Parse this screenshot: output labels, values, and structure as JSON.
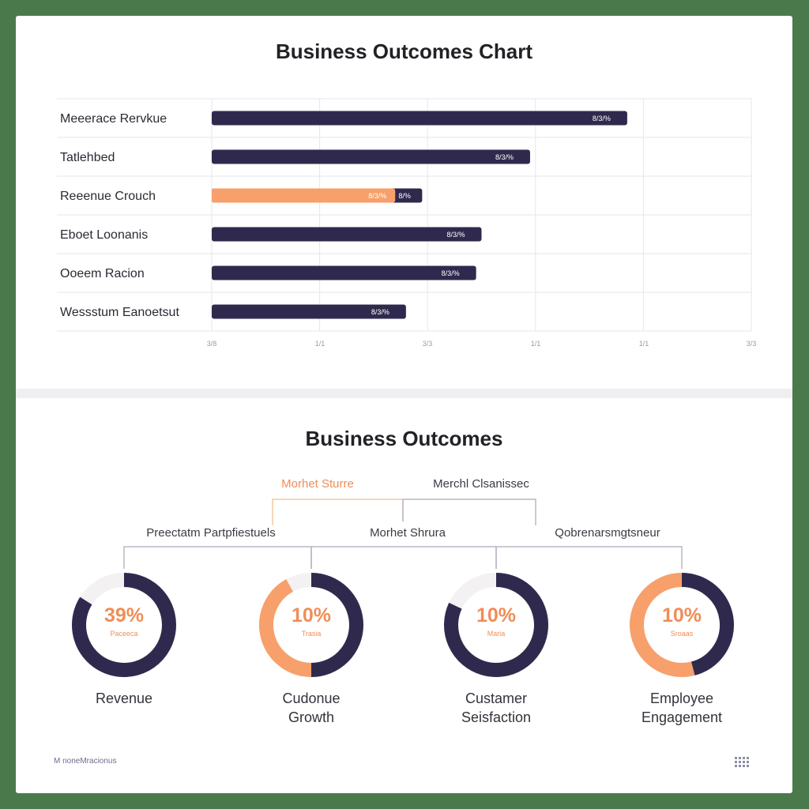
{
  "top_title": "Business Outcomes Chart",
  "bottom_title": "Business Outcomes",
  "chart_data": {
    "type": "bar",
    "orientation": "horizontal",
    "title": "Business Outcomes Chart",
    "categories": [
      "Meeerace Rervkue",
      "Tatlehbed",
      "Reeenue Crouch",
      "Eboet Loonanis",
      "Ooeem Racion",
      "Wessstum Eanoetsut"
    ],
    "values": [
      77,
      59,
      39,
      50,
      49,
      36
    ],
    "highlight": {
      "category": "Reeenue Crouch",
      "orange_value": 34
    },
    "value_labels": [
      "8/3/%",
      "8/3/%",
      "8/3/%",
      "8/3/%",
      "8/3/%",
      "8/3/%"
    ],
    "highlight_inner_label": "8/3/%",
    "highlight_outer_label": "8/%",
    "xlim": [
      0,
      100
    ],
    "x_tick_labels": [
      "3/8",
      "1/1",
      "3/3",
      "1/1",
      "1/1",
      "3/3"
    ],
    "colors": {
      "primary": "#2f2a4d",
      "accent": "#f7a06b",
      "grid": "#e6e6ec"
    }
  },
  "hierarchy": {
    "top_left": "Morhet Sturre",
    "top_right": "Merchl Clsanissec",
    "mid_left": "Preectatm Partpfiestuels",
    "mid_center": "Morhet Shrura",
    "mid_right": "Qobrenarsmgtsneur"
  },
  "rings": [
    {
      "pct_label": "39%",
      "sub_label": "Paceeca",
      "name_line1": "Revenue",
      "name_line2": "",
      "dark_fraction": 0.84,
      "orange_fraction": 0.0,
      "pct_color": "#f08d57"
    },
    {
      "pct_label": "10%",
      "sub_label": "Trasia",
      "name_line1": "Cudonue",
      "name_line2": "Growth",
      "dark_fraction": 0.5,
      "orange_fraction": 0.42,
      "pct_color": "#f08d57"
    },
    {
      "pct_label": "10%",
      "sub_label": "Maria",
      "name_line1": "Custamer",
      "name_line2": "Seisfaction",
      "dark_fraction": 0.82,
      "orange_fraction": 0.0,
      "pct_color": "#f08d57"
    },
    {
      "pct_label": "10%",
      "sub_label": "Sroaas",
      "name_line1": "Employee",
      "name_line2": "Engagement",
      "dark_fraction": 0.46,
      "orange_fraction": 0.54,
      "pct_color": "#f08d57"
    }
  ],
  "footer": {
    "note": "M noneMracionus",
    "grid_icon": "grid-icon"
  }
}
